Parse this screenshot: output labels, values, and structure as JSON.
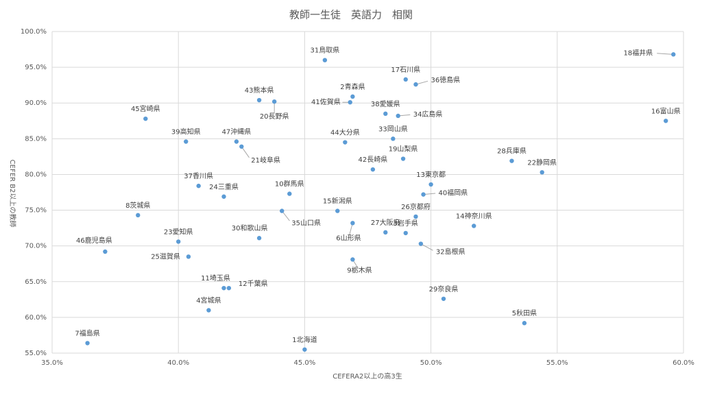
{
  "chart_data": {
    "type": "scatter",
    "title": "教師一生徒　英語力　相関",
    "x_label": "CEFERA2以上の高3生",
    "y_label": "CEFER B2以上の教師",
    "color": "#5b9bd5",
    "grid": true,
    "xlim": [
      35,
      60
    ],
    "ylim": [
      55,
      100
    ],
    "xticks": [
      {
        "value": 35,
        "label": "35.0%"
      },
      {
        "value": 40,
        "label": "40.0%"
      },
      {
        "value": 45,
        "label": "45.0%"
      },
      {
        "value": 50,
        "label": "50.0%"
      },
      {
        "value": 55,
        "label": "55.0%"
      },
      {
        "value": 60,
        "label": "60.0%"
      }
    ],
    "yticks": [
      {
        "value": 55,
        "label": "55.0%"
      },
      {
        "value": 60,
        "label": "60.0%"
      },
      {
        "value": 65,
        "label": "65.0%"
      },
      {
        "value": 70,
        "label": "70.0%"
      },
      {
        "value": 75,
        "label": "75.0%"
      },
      {
        "value": 80,
        "label": "80.0%"
      },
      {
        "value": 85,
        "label": "85.0%"
      },
      {
        "value": 90,
        "label": "90.0%"
      },
      {
        "value": 95,
        "label": "95.0%"
      },
      {
        "value": 100,
        "label": "100.0%"
      }
    ],
    "labels": [
      "1北海道",
      "2青森県",
      "3岩手県",
      "4宮城県",
      "5秋田県",
      "6山形県",
      "7福島県",
      "8茨城県",
      "9栃木県",
      "10群馬県",
      "11埼玉県",
      "12千葉県",
      "13東京都",
      "14神奈川県",
      "15新潟県",
      "16富山県",
      "17石川県",
      "18福井県",
      "19山梨県",
      "20長野県",
      "21岐阜県",
      "22静岡県",
      "23愛知県",
      "24三重県",
      "25滋賀県",
      "26京都府",
      "27大阪府",
      "28兵庫県",
      "29奈良県",
      "30和歌山県",
      "31鳥取県",
      "32島根県",
      "33岡山県",
      "34広島県",
      "35山口県",
      "36徳島県",
      "37香川県",
      "38愛媛県",
      "39高知県",
      "40福岡県",
      "41佐賀県",
      "42長崎県",
      "43熊本県",
      "44大分県",
      "45宮崎県",
      "46鹿児島県",
      "47沖縄県"
    ],
    "x": [
      45.0,
      46.9,
      49.0,
      41.2,
      53.7,
      46.9,
      36.4,
      38.4,
      46.9,
      44.4,
      41.8,
      42.0,
      50.0,
      51.7,
      46.3,
      59.3,
      49.0,
      59.6,
      48.9,
      43.8,
      42.5,
      54.4,
      40.0,
      41.8,
      40.4,
      49.4,
      48.2,
      53.2,
      50.5,
      43.2,
      45.8,
      49.6,
      48.5,
      48.7,
      44.1,
      49.4,
      40.8,
      48.2,
      40.3,
      49.7,
      46.8,
      47.7,
      43.2,
      46.6,
      38.7,
      37.1,
      42.3
    ],
    "values": [
      55.5,
      90.9,
      71.8,
      61.0,
      59.2,
      73.2,
      56.4,
      74.3,
      68.1,
      77.3,
      64.1,
      64.1,
      78.6,
      72.8,
      74.9,
      87.5,
      93.3,
      96.8,
      82.2,
      90.2,
      83.9,
      80.3,
      70.6,
      76.9,
      68.5,
      74.1,
      71.9,
      81.9,
      62.6,
      71.1,
      96.0,
      70.3,
      85.0,
      88.2,
      74.9,
      92.6,
      78.4,
      88.5,
      84.6,
      77.2,
      90.1,
      80.7,
      90.4,
      84.5,
      87.8,
      69.2,
      84.6
    ]
  }
}
